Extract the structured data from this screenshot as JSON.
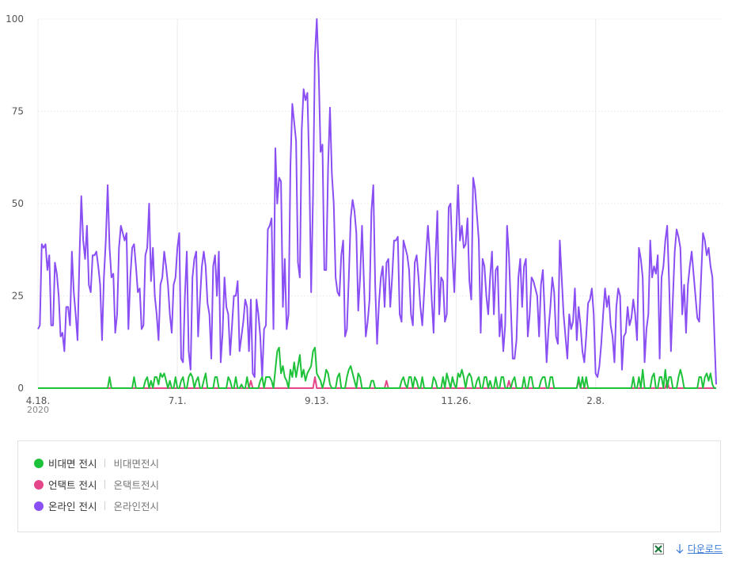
{
  "chart_data": {
    "type": "line",
    "x_year_label": "2020",
    "categories": [
      "4.18.",
      null,
      null,
      null,
      null,
      null,
      null,
      null,
      null,
      null,
      null,
      null,
      null,
      null,
      null,
      null,
      null,
      null,
      null,
      null,
      null,
      null,
      null,
      null,
      null,
      null,
      null,
      null,
      null,
      null,
      null,
      null,
      null,
      null,
      null,
      null,
      null,
      null,
      null,
      null,
      null,
      null,
      null,
      null,
      null,
      null,
      null,
      null,
      null,
      null,
      null,
      null,
      null,
      null,
      null,
      null,
      null,
      null,
      null,
      null,
      null,
      null,
      null,
      null,
      null,
      null,
      null,
      null,
      null,
      null,
      null,
      null,
      null,
      null,
      "7.1.",
      null,
      null,
      null,
      null,
      null,
      null,
      null,
      null,
      null,
      null,
      null,
      null,
      null,
      null,
      null,
      null,
      null,
      null,
      null,
      null,
      null,
      null,
      null,
      null,
      null,
      null,
      null,
      null,
      null,
      null,
      null,
      null,
      null,
      null,
      null,
      null,
      null,
      null,
      null,
      null,
      null,
      null,
      null,
      null,
      null,
      null,
      null,
      null,
      null,
      null,
      null,
      null,
      null,
      null,
      null,
      null,
      null,
      null,
      null,
      null,
      null,
      null,
      null,
      null,
      null,
      null,
      null,
      null,
      null,
      null,
      null,
      null,
      null,
      "9.13.",
      null,
      null,
      null,
      null,
      null,
      null,
      null,
      null,
      null,
      null,
      null,
      null,
      null,
      null,
      null,
      null,
      null,
      null,
      null,
      null,
      null,
      null,
      null,
      null,
      null,
      null,
      null,
      null,
      null,
      null,
      null,
      null,
      null,
      null,
      null,
      null,
      null,
      null,
      null,
      null,
      null,
      null,
      null,
      null,
      null,
      null,
      null,
      null,
      null,
      null,
      null,
      null,
      null,
      null,
      null,
      null,
      null,
      null,
      null,
      null,
      null,
      null,
      null,
      null,
      null,
      null,
      null,
      null,
      null,
      null,
      null,
      null,
      null,
      "11.26.",
      null,
      null,
      null,
      null,
      null,
      null,
      null,
      null,
      null,
      null,
      null,
      null,
      null,
      null,
      null,
      null,
      null,
      null,
      null,
      null,
      null,
      null,
      null,
      null,
      null,
      null,
      null,
      null,
      null,
      null,
      null,
      null,
      null,
      null,
      null,
      null,
      null,
      null,
      null,
      null,
      null,
      null,
      null,
      null,
      null,
      null,
      null,
      null,
      null,
      null,
      null,
      null,
      null,
      null,
      null,
      null,
      null,
      null,
      null,
      null,
      null,
      null,
      null,
      null,
      null,
      null,
      null,
      null,
      null,
      null,
      null,
      null,
      null,
      "2.8.",
      null,
      null,
      null,
      null,
      null,
      null,
      null,
      null,
      null,
      null,
      null,
      null,
      null,
      null,
      null,
      null,
      null,
      null,
      null,
      null,
      null,
      null,
      null,
      null,
      null,
      null,
      null,
      null,
      null,
      null,
      null,
      null,
      null,
      null,
      null,
      null,
      null,
      null,
      null,
      null,
      null,
      null,
      null,
      null,
      null,
      null,
      null,
      null,
      null,
      null,
      null,
      null,
      null,
      null,
      null,
      null,
      null,
      null,
      null,
      null,
      null,
      null,
      null,
      null
    ],
    "series": [
      {
        "name": "비대면 전시",
        "keywords": "비대면전시",
        "color": "#1ec23a",
        "values": [
          0,
          0,
          0,
          0,
          0,
          0,
          0,
          0,
          0,
          0,
          0,
          0,
          0,
          0,
          0,
          0,
          0,
          0,
          0,
          0,
          0,
          0,
          0,
          0,
          0,
          0,
          0,
          0,
          0,
          0,
          0,
          0,
          0,
          0,
          0,
          0,
          0,
          0,
          3,
          0,
          0,
          0,
          0,
          0,
          0,
          0,
          0,
          0,
          0,
          0,
          0,
          3,
          0,
          0,
          0,
          0,
          0,
          2,
          3,
          0,
          2,
          0,
          3,
          3,
          1,
          4,
          3,
          4,
          2,
          0,
          2,
          0,
          0,
          3,
          0,
          0,
          2,
          3,
          0,
          0,
          3,
          4,
          3,
          0,
          2,
          3,
          0,
          0,
          2,
          4,
          0,
          0,
          0,
          0,
          3,
          3,
          0,
          0,
          0,
          0,
          0,
          3,
          2,
          0,
          0,
          3,
          0,
          0,
          1,
          0,
          0,
          3,
          0,
          0,
          0,
          0,
          0,
          0,
          2,
          3,
          0,
          3,
          3,
          3,
          2,
          0,
          5,
          10,
          11,
          4,
          6,
          3,
          2,
          0,
          5,
          3,
          7,
          3,
          6,
          9,
          3,
          5,
          2,
          4,
          5,
          6,
          10,
          11,
          4,
          3,
          2,
          0,
          2,
          5,
          4,
          1,
          0,
          0,
          0,
          3,
          4,
          0,
          0,
          0,
          3,
          5,
          6,
          4,
          2,
          0,
          4,
          3,
          0,
          0,
          0,
          0,
          0,
          2,
          2,
          0,
          0,
          0,
          0,
          0,
          0,
          0,
          0,
          0,
          0,
          0,
          0,
          0,
          0,
          2,
          3,
          1,
          0,
          3,
          3,
          0,
          3,
          2,
          0,
          0,
          3,
          0,
          0,
          0,
          0,
          0,
          3,
          2,
          0,
          0,
          0,
          3,
          0,
          4,
          2,
          0,
          3,
          1,
          0,
          4,
          3,
          5,
          3,
          0,
          3,
          4,
          3,
          0,
          0,
          2,
          3,
          0,
          0,
          3,
          3,
          0,
          2,
          0,
          0,
          3,
          0,
          0,
          3,
          3,
          0,
          0,
          0,
          0,
          2,
          3,
          0,
          0,
          0,
          0,
          3,
          0,
          0,
          3,
          3,
          0,
          0,
          0,
          0,
          2,
          3,
          3,
          0,
          0,
          3,
          3,
          0,
          0,
          0,
          0,
          0,
          0,
          0,
          0,
          0,
          0,
          0,
          0,
          0,
          3,
          0,
          3,
          0,
          3,
          0,
          0,
          0,
          0,
          0,
          0,
          0,
          0,
          0,
          0,
          0,
          0,
          0,
          0,
          0,
          0,
          0,
          0,
          0,
          0,
          0,
          0,
          0,
          0,
          3,
          0,
          0,
          3,
          0,
          5,
          0,
          0,
          0,
          0,
          3,
          4,
          0,
          0,
          3,
          3,
          0,
          5,
          0,
          3,
          3,
          0,
          0,
          0,
          3,
          5,
          3,
          0,
          0,
          0,
          0,
          0,
          0,
          0,
          0,
          3,
          3,
          0,
          3,
          4,
          2,
          4,
          1,
          0,
          0
        ]
      },
      {
        "name": "언택트 전시",
        "keywords": "온택트전시",
        "color": "#e5468a",
        "values": [
          0,
          0,
          0,
          0,
          0,
          0,
          0,
          0,
          0,
          0,
          0,
          0,
          0,
          0,
          0,
          0,
          0,
          0,
          0,
          0,
          0,
          0,
          0,
          0,
          0,
          0,
          0,
          0,
          0,
          0,
          0,
          0,
          0,
          0,
          0,
          0,
          0,
          0,
          0,
          0,
          0,
          0,
          0,
          0,
          0,
          0,
          0,
          0,
          0,
          0,
          0,
          0,
          0,
          0,
          0,
          0,
          0,
          0,
          0,
          0,
          0,
          0,
          0,
          0,
          0,
          0,
          0,
          0,
          0,
          0,
          0,
          0,
          0,
          0,
          0,
          0,
          0,
          0,
          0,
          0,
          0,
          0,
          0,
          0,
          0,
          0,
          0,
          0,
          0,
          0,
          0,
          0,
          0,
          0,
          0,
          0,
          0,
          0,
          0,
          0,
          0,
          0,
          0,
          0,
          0,
          0,
          0,
          0,
          0,
          0,
          0,
          0,
          0,
          2,
          0,
          0,
          0,
          0,
          0,
          0,
          0,
          0,
          0,
          0,
          0,
          0,
          0,
          0,
          0,
          0,
          0,
          0,
          0,
          0,
          0,
          0,
          0,
          0,
          0,
          0,
          0,
          0,
          0,
          0,
          0,
          0,
          0,
          3,
          0,
          0,
          0,
          0,
          0,
          0,
          0,
          0,
          0,
          0,
          0,
          0,
          0,
          0,
          0,
          0,
          0,
          0,
          0,
          0,
          0,
          0,
          0,
          0,
          0,
          0,
          0,
          0,
          0,
          0,
          0,
          0,
          0,
          0,
          0,
          0,
          0,
          2,
          0,
          0,
          0,
          0,
          0,
          0,
          0,
          0,
          0,
          0,
          0,
          0,
          0,
          0,
          0,
          0,
          0,
          0,
          0,
          0,
          0,
          0,
          0,
          0,
          0,
          0,
          0,
          0,
          0,
          0,
          0,
          0,
          0,
          0,
          0,
          0,
          0,
          0,
          0,
          0,
          0,
          0,
          0,
          0,
          0,
          0,
          0,
          0,
          0,
          0,
          0,
          0,
          0,
          0,
          0,
          0,
          0,
          0,
          0,
          0,
          0,
          0,
          0,
          0,
          2,
          0,
          0,
          0,
          0,
          0,
          0,
          0,
          0,
          0,
          0,
          0,
          0,
          0,
          0,
          0,
          0,
          0,
          0,
          0,
          0,
          0,
          0,
          0,
          0,
          0,
          0,
          0,
          0,
          0,
          0,
          0,
          0,
          0,
          0,
          0,
          0,
          2,
          0,
          0,
          0,
          0,
          0,
          0,
          0,
          0,
          0,
          0,
          0,
          0,
          0,
          0,
          0,
          0,
          0,
          0,
          0,
          0,
          0,
          0,
          0,
          0,
          0,
          0,
          0,
          0,
          0,
          0,
          0,
          0,
          0,
          0,
          0,
          0,
          0,
          0,
          0,
          0,
          0,
          0,
          0,
          0,
          0,
          0,
          2,
          0,
          0,
          0,
          0,
          0,
          0,
          0,
          0,
          0,
          0,
          0,
          0,
          0,
          0,
          0,
          0,
          0,
          0,
          0,
          0,
          0,
          0,
          0,
          0,
          0,
          0
        ]
      },
      {
        "name": "온라인 전시",
        "keywords": "온라인전시",
        "color": "#8a4ff3",
        "values": [
          16,
          17,
          39,
          38,
          39,
          32,
          36,
          17,
          17,
          34,
          31,
          25,
          14,
          15,
          10,
          22,
          22,
          17,
          37,
          26,
          20,
          13,
          35,
          52,
          40,
          35,
          44,
          28,
          26,
          36,
          36,
          37,
          33,
          28,
          13,
          30,
          40,
          55,
          38,
          30,
          31,
          15,
          20,
          38,
          44,
          42,
          40,
          42,
          16,
          30,
          38,
          39,
          33,
          26,
          27,
          16,
          17,
          36,
          38,
          50,
          29,
          38,
          25,
          20,
          13,
          28,
          30,
          37,
          33,
          28,
          20,
          15,
          28,
          30,
          38,
          42,
          8,
          7,
          25,
          37,
          10,
          5,
          30,
          35,
          37,
          14,
          24,
          33,
          37,
          33,
          23,
          20,
          8,
          33,
          36,
          25,
          37,
          7,
          15,
          30,
          22,
          20,
          9,
          17,
          25,
          25,
          29,
          10,
          14,
          18,
          24,
          22,
          10,
          24,
          4,
          3,
          24,
          20,
          14,
          3,
          16,
          17,
          43,
          44,
          46,
          16,
          65,
          50,
          57,
          56,
          22,
          35,
          16,
          20,
          60,
          77,
          72,
          67,
          34,
          30,
          70,
          81,
          78,
          80,
          60,
          26,
          52,
          90,
          100,
          86,
          64,
          66,
          32,
          32,
          60,
          76,
          58,
          50,
          30,
          26,
          25,
          36,
          40,
          14,
          16,
          30,
          46,
          51,
          48,
          42,
          21,
          30,
          44,
          29,
          14,
          18,
          24,
          48,
          55,
          28,
          12,
          23,
          30,
          33,
          22,
          34,
          35,
          22,
          30,
          40,
          40,
          41,
          20,
          18,
          40,
          38,
          36,
          32,
          20,
          17,
          34,
          36,
          30,
          22,
          17,
          26,
          36,
          44,
          36,
          24,
          15,
          35,
          48,
          20,
          30,
          29,
          18,
          20,
          49,
          50,
          36,
          26,
          42,
          55,
          40,
          44,
          38,
          39,
          46,
          29,
          24,
          57,
          54,
          47,
          40,
          15,
          35,
          33,
          25,
          20,
          30,
          37,
          20,
          32,
          33,
          14,
          20,
          10,
          17,
          44,
          36,
          22,
          8,
          8,
          13,
          30,
          35,
          22,
          33,
          35,
          14,
          20,
          30,
          29,
          27,
          25,
          14,
          28,
          32,
          20,
          7,
          16,
          22,
          30,
          26,
          14,
          12,
          40,
          30,
          20,
          14,
          8,
          20,
          16,
          18,
          27,
          13,
          22,
          17,
          10,
          7,
          14,
          23,
          24,
          27,
          20,
          4,
          3,
          6,
          12,
          20,
          27,
          22,
          25,
          17,
          14,
          7,
          22,
          27,
          25,
          5,
          14,
          15,
          22,
          17,
          19,
          24,
          20,
          13,
          38,
          35,
          30,
          7,
          16,
          20,
          40,
          30,
          33,
          31,
          36,
          8,
          30,
          33,
          40,
          44,
          29,
          10,
          24,
          37,
          43,
          41,
          38,
          20,
          28,
          15,
          28,
          33,
          37,
          31,
          25,
          19,
          18,
          30,
          42,
          40,
          36,
          38,
          33,
          30,
          15,
          1
        ]
      }
    ],
    "ylim": [
      0,
      100
    ],
    "yticks": [
      0,
      25,
      50,
      75,
      100
    ],
    "grid": true,
    "download": "다운로드"
  }
}
